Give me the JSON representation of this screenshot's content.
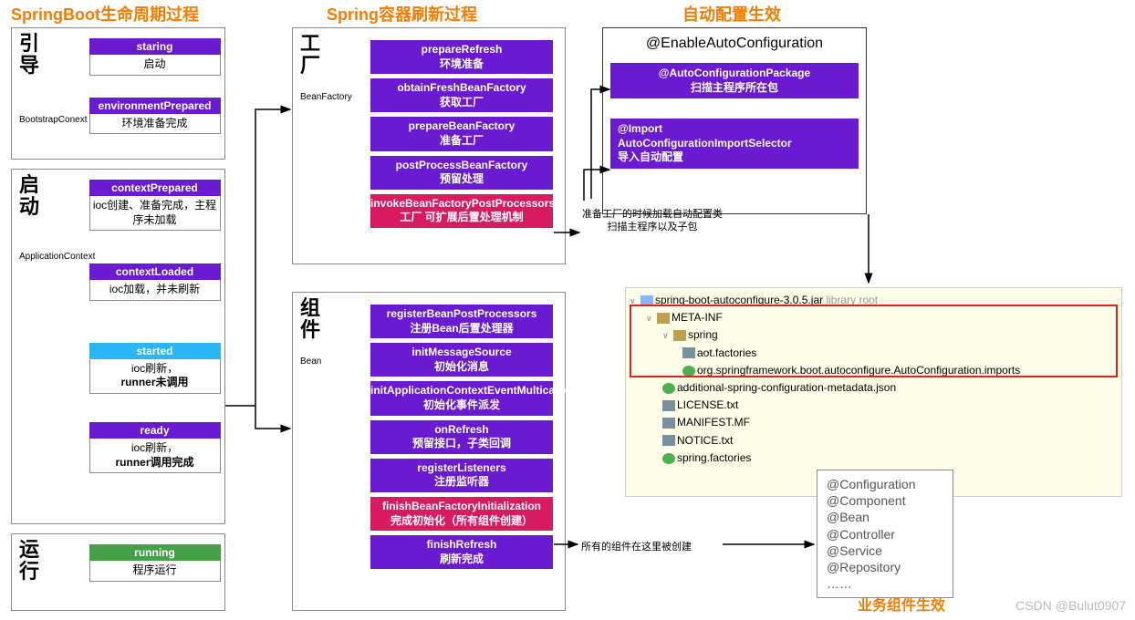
{
  "colors": {
    "orange": "#f57c00",
    "purple": "#6a1bd1",
    "magenta": "#d81b60",
    "blue": "#29b6f6",
    "green": "#43a047",
    "folder": "#c0a050",
    "file": "#78909c",
    "spring": "#4caf50"
  },
  "titles": {
    "lifecycle": "SpringBoot生命周期过程",
    "refresh": "Spring容器刷新过程",
    "autoconfig": "自动配置生效",
    "business": "业务组件生效"
  },
  "panels": {
    "bootstrap": {
      "label": "引导",
      "sub": "BootstrapConext"
    },
    "startup": {
      "label": "启动",
      "sub": "ApplicationContext"
    },
    "running": {
      "label": "运行",
      "sub": ""
    },
    "factory": {
      "label": "工厂",
      "sub": "BeanFactory"
    },
    "bean": {
      "label": "组件",
      "sub": "Bean"
    }
  },
  "lifecycle": {
    "staring": {
      "title": "staring",
      "body": "启动"
    },
    "envPrepared": {
      "title": "environmentPrepared",
      "body": "环境准备完成"
    },
    "contextPrepared": {
      "title": "contextPrepared",
      "body": "ioc创建、准备完成，主程序未加载"
    },
    "contextLoaded": {
      "title": "contextLoaded",
      "body": "ioc加载，并未刷新"
    },
    "started": {
      "title": "started",
      "body": "ioc刷新，\nrunner未调用"
    },
    "ready": {
      "title": "ready",
      "body": "ioc刷新，\nrunner调用完成"
    },
    "running": {
      "title": "running",
      "body": "程序运行"
    }
  },
  "factorySteps": {
    "s1": "prepareRefresh\n环境准备",
    "s2": "obtainFreshBeanFactory\n获取工厂",
    "s3": "prepareBeanFactory\n准备工厂",
    "s4": "postProcessBeanFactory\n预留处理",
    "s5": "invokeBeanFactoryPostProcessors\n工厂 可扩展后置处理机制"
  },
  "beanSteps": {
    "s1": "registerBeanPostProcessors\n注册Bean后置处理器",
    "s2": "initMessageSource\n初始化消息",
    "s3": "initApplicationContextEventMulticaster\n初始化事件派发",
    "s4": "onRefresh\n预留接口，子类回调",
    "s5": "registerListeners\n注册监听器",
    "s6": "finishBeanFactoryInitialization\n完成初始化（所有组件创建）",
    "s7": "finishRefresh\n刷新完成"
  },
  "annotation": {
    "title": "@EnableAutoConfiguration",
    "pkg": "@AutoConfigurationPackage\n扫描主程序所在包",
    "import": "@Import\nAutoConfigurationImportSelector\n导入自动配置"
  },
  "notes": {
    "n1": "准备工厂的时候加载自动配置类\n扫描主程序以及子包",
    "n2": "所有的组件在这里被创建"
  },
  "tree": {
    "root": "spring-boot-autoconfigure-3.0.5.jar",
    "rootSuffix": "library root",
    "metainf": "META-INF",
    "spring": "spring",
    "aot": "aot.factories",
    "imports": "org.springframework.boot.autoconfigure.AutoConfiguration.imports",
    "additional": "additional-spring-configuration-metadata.json",
    "license": "LICENSE.txt",
    "manifest": "MANIFEST.MF",
    "notice": "NOTICE.txt",
    "factories": "spring.factories"
  },
  "configList": {
    "l1": "@Configuration",
    "l2": "@Component",
    "l3": "@Bean",
    "l4": "@Controller",
    "l5": "@Service",
    "l6": "@Repository",
    "l7": "……"
  },
  "watermark": "CSDN @Bulut0907"
}
